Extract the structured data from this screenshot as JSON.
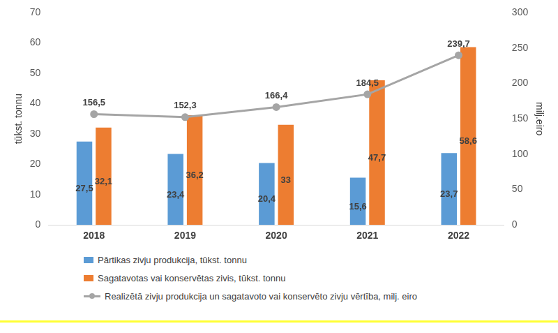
{
  "chart_data": {
    "type": "bar",
    "categories": [
      "2018",
      "2019",
      "2020",
      "2021",
      "2022"
    ],
    "series": [
      {
        "name": "Pārtikas zivju produkcija, tūkst. tonnu",
        "type": "bar",
        "color": "#5b9bd5",
        "values": [
          27.5,
          23.4,
          20.4,
          15.6,
          23.7
        ],
        "value_labels": [
          "27,5",
          "23,4",
          "20,4",
          "15,6",
          "23,7"
        ]
      },
      {
        "name": "Sagatavotas vai konservētas zivis, tūkst. tonnu",
        "type": "bar",
        "color": "#ed7d31",
        "values": [
          32.1,
          36.2,
          33,
          47.7,
          58.6
        ],
        "value_labels": [
          "32,1",
          "36,2",
          "33",
          "47,7",
          "58,6"
        ]
      },
      {
        "name": "Realizētā zivju produkcija un sagatavoto vai konservēto zivju vērtība, milj. eiro",
        "type": "line",
        "axis": "y2",
        "color": "#a5a5a5",
        "marker": "circle",
        "values": [
          156.5,
          152.3,
          166.4,
          184.5,
          239.7
        ],
        "value_labels": [
          "156,5",
          "152,3",
          "166,4",
          "184,5",
          "239,7"
        ]
      }
    ],
    "y_label": "tūkst. tonnu",
    "y2_label": "milj.eiro",
    "ylim": [
      0,
      70
    ],
    "yticks": [
      0,
      10,
      20,
      30,
      40,
      50,
      60,
      70
    ],
    "y2lim": [
      0,
      300
    ],
    "y2ticks": [
      0,
      50,
      100,
      150,
      200,
      250,
      300
    ],
    "grid": false,
    "legend": "bottom",
    "data_labels": true
  }
}
